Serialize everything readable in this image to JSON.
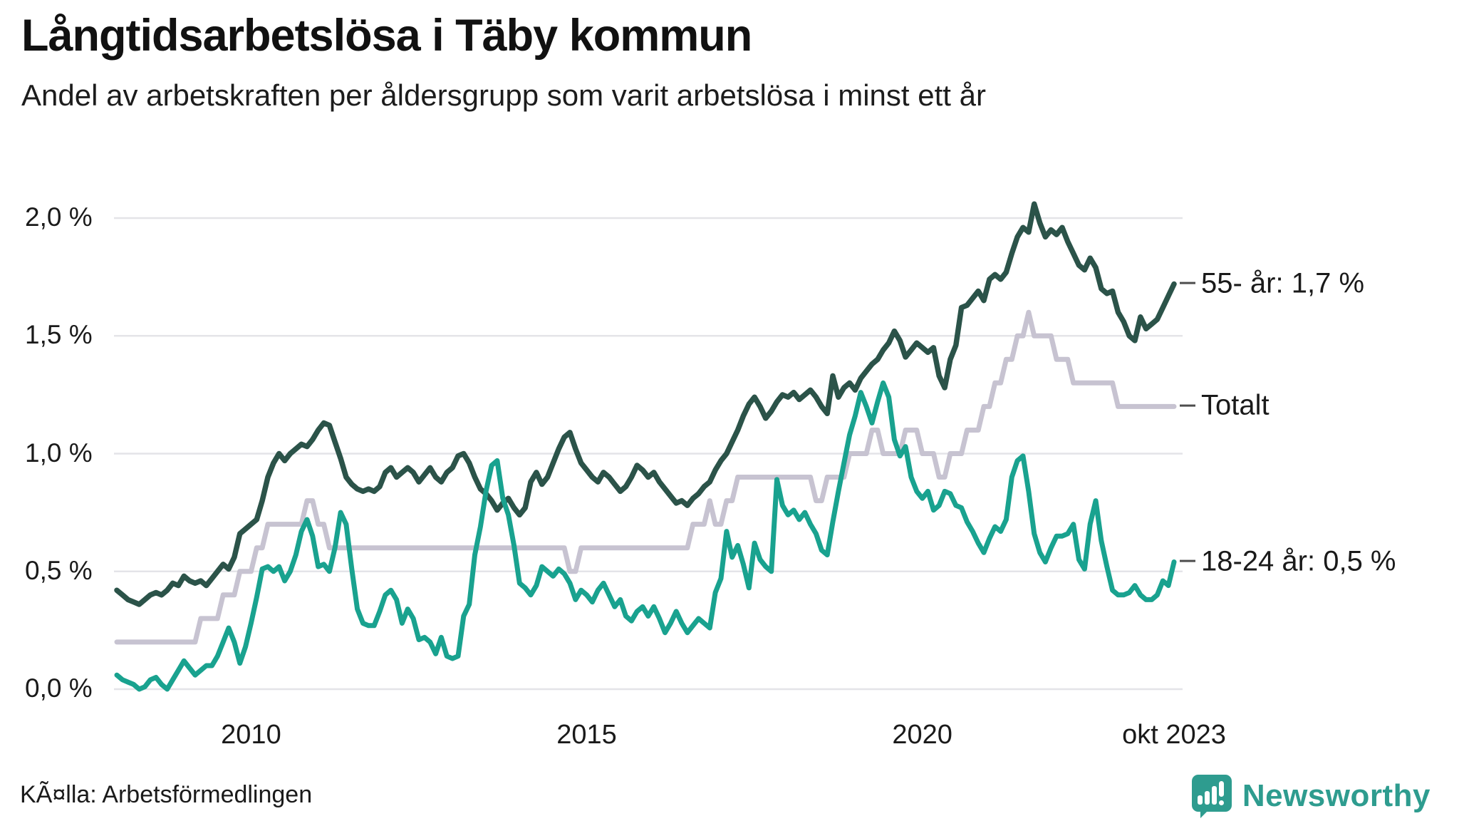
{
  "header": {
    "title": "Långtidsarbetslösa i Täby kommun",
    "subtitle": "Andel av arbetskraften per åldersgrupp som varit arbetslösa i minst ett år"
  },
  "footer": {
    "source": "KÃ¤lla: Arbetsförmedlingen",
    "brand": "Newsworthy"
  },
  "colors": {
    "green_55": "#2b5349",
    "gray_total": "#c7c3d1",
    "teal_1824": "#19a28f",
    "gridline": "#e4e4e8",
    "brand_teal": "#2e9c8f",
    "end_dash": "#4d4d4d"
  },
  "chart_data": {
    "type": "line",
    "title": "Långtidsarbetslösa i Täby kommun",
    "subtitle": "Andel av arbetskraften per åldersgrupp som varit arbetslösa i minst ett år",
    "grid": "horizontal",
    "legend_position": "right-end-labels",
    "x_axis": {
      "unit": "month",
      "n_points": 190,
      "tick_labels": [
        "2010",
        "2015",
        "2020",
        "okt 2023"
      ],
      "tick_positions_months": [
        24,
        84,
        144,
        189
      ]
    },
    "y_axis": {
      "tick_labels": [
        "0,0 %",
        "0,5 %",
        "1,0 %",
        "1,5 %",
        "2,0 %"
      ],
      "tick_values": [
        0,
        0.5,
        1.0,
        1.5,
        2.0
      ],
      "ylim": [
        0,
        2.1
      ]
    },
    "series": [
      {
        "name": "Totalt",
        "end_label": "Totalt",
        "color": "#c7c3d1",
        "stroke_width": 7,
        "values": [
          0.2,
          0.2,
          0.2,
          0.2,
          0.2,
          0.2,
          0.2,
          0.2,
          0.2,
          0.2,
          0.2,
          0.2,
          0.2,
          0.2,
          0.2,
          0.3,
          0.3,
          0.3,
          0.3,
          0.4,
          0.4,
          0.4,
          0.5,
          0.5,
          0.5,
          0.6,
          0.6,
          0.7,
          0.7,
          0.7,
          0.7,
          0.7,
          0.7,
          0.7,
          0.8,
          0.8,
          0.7,
          0.7,
          0.6,
          0.6,
          0.6,
          0.6,
          0.6,
          0.6,
          0.6,
          0.6,
          0.6,
          0.6,
          0.6,
          0.6,
          0.6,
          0.6,
          0.6,
          0.6,
          0.6,
          0.6,
          0.6,
          0.6,
          0.6,
          0.6,
          0.6,
          0.6,
          0.6,
          0.6,
          0.6,
          0.6,
          0.6,
          0.6,
          0.6,
          0.6,
          0.6,
          0.6,
          0.6,
          0.6,
          0.6,
          0.6,
          0.6,
          0.6,
          0.6,
          0.6,
          0.6,
          0.5,
          0.5,
          0.6,
          0.6,
          0.6,
          0.6,
          0.6,
          0.6,
          0.6,
          0.6,
          0.6,
          0.6,
          0.6,
          0.6,
          0.6,
          0.6,
          0.6,
          0.6,
          0.6,
          0.6,
          0.6,
          0.6,
          0.7,
          0.7,
          0.7,
          0.8,
          0.7,
          0.7,
          0.8,
          0.8,
          0.9,
          0.9,
          0.9,
          0.9,
          0.9,
          0.9,
          0.9,
          0.9,
          0.9,
          0.9,
          0.9,
          0.9,
          0.9,
          0.9,
          0.8,
          0.8,
          0.9,
          0.9,
          0.9,
          0.9,
          1.0,
          1.0,
          1.0,
          1.0,
          1.1,
          1.1,
          1.0,
          1.0,
          1.0,
          1.0,
          1.1,
          1.1,
          1.1,
          1.0,
          1.0,
          1.0,
          0.9,
          0.9,
          1.0,
          1.0,
          1.0,
          1.1,
          1.1,
          1.1,
          1.2,
          1.2,
          1.3,
          1.3,
          1.4,
          1.4,
          1.5,
          1.5,
          1.6,
          1.5,
          1.5,
          1.5,
          1.5,
          1.4,
          1.4,
          1.4,
          1.3,
          1.3,
          1.3,
          1.3,
          1.3,
          1.3,
          1.3,
          1.3,
          1.2,
          1.2,
          1.2,
          1.2,
          1.2,
          1.2,
          1.2,
          1.2,
          1.2,
          1.2,
          1.2
        ]
      },
      {
        "name": "55- år",
        "end_label": "55- år: 1,7 %",
        "color": "#2b5349",
        "stroke_width": 7.5,
        "values": [
          0.42,
          0.4,
          0.38,
          0.37,
          0.36,
          0.38,
          0.4,
          0.41,
          0.4,
          0.42,
          0.45,
          0.44,
          0.48,
          0.46,
          0.45,
          0.46,
          0.44,
          0.47,
          0.5,
          0.53,
          0.51,
          0.56,
          0.66,
          0.68,
          0.7,
          0.72,
          0.8,
          0.9,
          0.96,
          1.0,
          0.97,
          1.0,
          1.02,
          1.04,
          1.03,
          1.06,
          1.1,
          1.13,
          1.12,
          1.05,
          0.98,
          0.9,
          0.87,
          0.85,
          0.84,
          0.85,
          0.84,
          0.86,
          0.92,
          0.94,
          0.9,
          0.92,
          0.94,
          0.92,
          0.88,
          0.91,
          0.94,
          0.9,
          0.88,
          0.92,
          0.94,
          0.99,
          1.0,
          0.96,
          0.9,
          0.85,
          0.83,
          0.8,
          0.76,
          0.79,
          0.81,
          0.77,
          0.74,
          0.77,
          0.88,
          0.92,
          0.87,
          0.9,
          0.96,
          1.02,
          1.07,
          1.09,
          1.02,
          0.96,
          0.93,
          0.9,
          0.88,
          0.92,
          0.9,
          0.87,
          0.84,
          0.86,
          0.9,
          0.95,
          0.93,
          0.9,
          0.92,
          0.88,
          0.85,
          0.82,
          0.79,
          0.8,
          0.78,
          0.81,
          0.83,
          0.86,
          0.88,
          0.93,
          0.97,
          1.0,
          1.05,
          1.1,
          1.16,
          1.21,
          1.24,
          1.2,
          1.15,
          1.18,
          1.22,
          1.25,
          1.24,
          1.26,
          1.23,
          1.25,
          1.27,
          1.24,
          1.2,
          1.17,
          1.33,
          1.24,
          1.28,
          1.3,
          1.27,
          1.32,
          1.35,
          1.38,
          1.4,
          1.44,
          1.47,
          1.52,
          1.48,
          1.41,
          1.44,
          1.47,
          1.45,
          1.43,
          1.45,
          1.33,
          1.28,
          1.4,
          1.46,
          1.62,
          1.63,
          1.66,
          1.69,
          1.65,
          1.74,
          1.76,
          1.74,
          1.77,
          1.85,
          1.92,
          1.96,
          1.94,
          2.06,
          1.98,
          1.92,
          1.95,
          1.93,
          1.96,
          1.9,
          1.85,
          1.8,
          1.78,
          1.83,
          1.79,
          1.7,
          1.68,
          1.69,
          1.6,
          1.56,
          1.5,
          1.48,
          1.58,
          1.53,
          1.55,
          1.57,
          1.62,
          1.67,
          1.72
        ]
      },
      {
        "name": "18-24 år",
        "end_label": "18-24 år: 0,5 %",
        "color": "#19a28f",
        "stroke_width": 7,
        "values": [
          0.06,
          0.04,
          0.03,
          0.02,
          0.0,
          0.01,
          0.04,
          0.05,
          0.02,
          0.0,
          0.04,
          0.08,
          0.12,
          0.09,
          0.06,
          0.08,
          0.1,
          0.1,
          0.14,
          0.2,
          0.26,
          0.2,
          0.11,
          0.18,
          0.28,
          0.39,
          0.51,
          0.52,
          0.5,
          0.52,
          0.46,
          0.5,
          0.57,
          0.67,
          0.72,
          0.65,
          0.52,
          0.53,
          0.5,
          0.6,
          0.75,
          0.7,
          0.51,
          0.34,
          0.28,
          0.27,
          0.27,
          0.33,
          0.4,
          0.42,
          0.38,
          0.28,
          0.34,
          0.3,
          0.21,
          0.22,
          0.2,
          0.15,
          0.22,
          0.14,
          0.13,
          0.14,
          0.31,
          0.36,
          0.57,
          0.69,
          0.84,
          0.95,
          0.97,
          0.81,
          0.74,
          0.61,
          0.45,
          0.43,
          0.4,
          0.44,
          0.52,
          0.5,
          0.48,
          0.51,
          0.49,
          0.45,
          0.38,
          0.42,
          0.4,
          0.37,
          0.42,
          0.45,
          0.4,
          0.35,
          0.38,
          0.31,
          0.29,
          0.33,
          0.35,
          0.31,
          0.35,
          0.3,
          0.24,
          0.28,
          0.33,
          0.28,
          0.24,
          0.27,
          0.3,
          0.28,
          0.26,
          0.41,
          0.47,
          0.67,
          0.56,
          0.61,
          0.53,
          0.43,
          0.62,
          0.55,
          0.52,
          0.5,
          0.89,
          0.78,
          0.74,
          0.76,
          0.72,
          0.75,
          0.7,
          0.66,
          0.59,
          0.57,
          0.71,
          0.84,
          0.96,
          1.08,
          1.16,
          1.26,
          1.2,
          1.13,
          1.22,
          1.3,
          1.24,
          1.06,
          0.99,
          1.03,
          0.9,
          0.84,
          0.81,
          0.84,
          0.76,
          0.78,
          0.84,
          0.83,
          0.78,
          0.77,
          0.71,
          0.67,
          0.62,
          0.58,
          0.64,
          0.69,
          0.67,
          0.72,
          0.9,
          0.97,
          0.99,
          0.84,
          0.66,
          0.58,
          0.54,
          0.6,
          0.65,
          0.65,
          0.66,
          0.7,
          0.55,
          0.51,
          0.7,
          0.8,
          0.63,
          0.52,
          0.42,
          0.4,
          0.4,
          0.41,
          0.44,
          0.4,
          0.38,
          0.38,
          0.4,
          0.46,
          0.44,
          0.54
        ]
      }
    ]
  }
}
